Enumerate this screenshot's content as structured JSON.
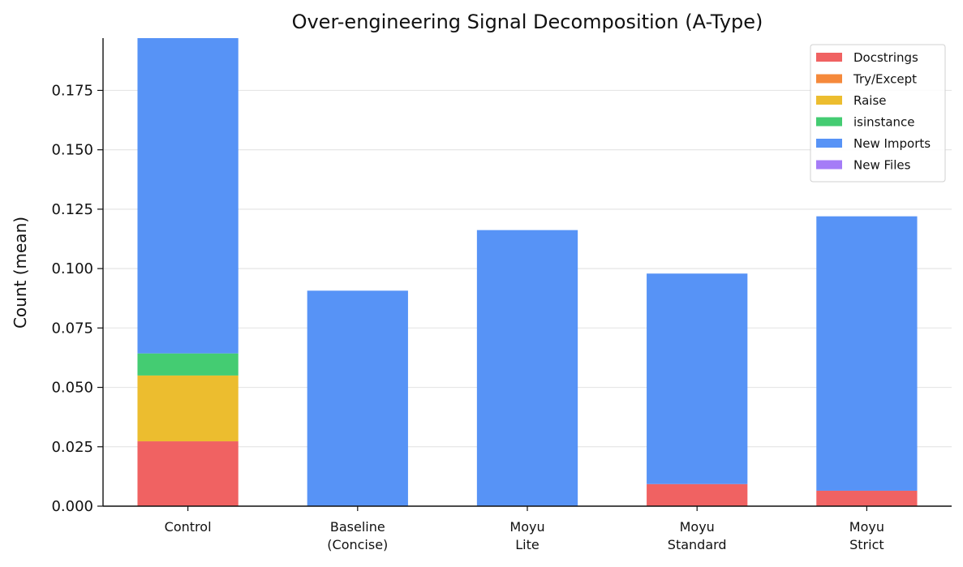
{
  "chart_data": {
    "type": "bar",
    "stacked": true,
    "title": "Over-engineering Signal Decomposition (A-Type)",
    "xlabel": "",
    "ylabel": "Count (mean)",
    "ylim": [
      0,
      0.197
    ],
    "yticks": [
      "0.000",
      "0.025",
      "0.050",
      "0.075",
      "0.100",
      "0.125",
      "0.150",
      "0.175"
    ],
    "ytick_values": [
      0,
      0.025,
      0.05,
      0.075,
      0.1,
      0.125,
      0.15,
      0.175
    ],
    "grid": "horizontal",
    "legend_position": "top-right",
    "categories": [
      [
        "Control"
      ],
      [
        "Baseline",
        "(Concise)"
      ],
      [
        "Moyu",
        "Lite"
      ],
      [
        "Moyu",
        "Standard"
      ],
      [
        "Moyu",
        "Strict"
      ]
    ],
    "series": [
      {
        "name": "Docstrings",
        "color": "#f06262",
        "values": [
          0.0273,
          0,
          0,
          0.0093,
          0.0065
        ]
      },
      {
        "name": "Try/Except",
        "color": "#f5893b",
        "values": [
          0,
          0,
          0,
          0,
          0
        ]
      },
      {
        "name": "Raise",
        "color": "#ecbd2f",
        "values": [
          0.0277,
          0,
          0,
          0,
          0
        ]
      },
      {
        "name": "isinstance",
        "color": "#44cc72",
        "values": [
          0.0093,
          0,
          0,
          0,
          0
        ]
      },
      {
        "name": "New Imports",
        "color": "#5793f6",
        "values": [
          0.1327,
          0.0907,
          0.1162,
          0.0886,
          0.1155
        ]
      },
      {
        "name": "New Files",
        "color": "#a57cf7",
        "values": [
          0,
          0,
          0,
          0,
          0
        ]
      }
    ]
  }
}
